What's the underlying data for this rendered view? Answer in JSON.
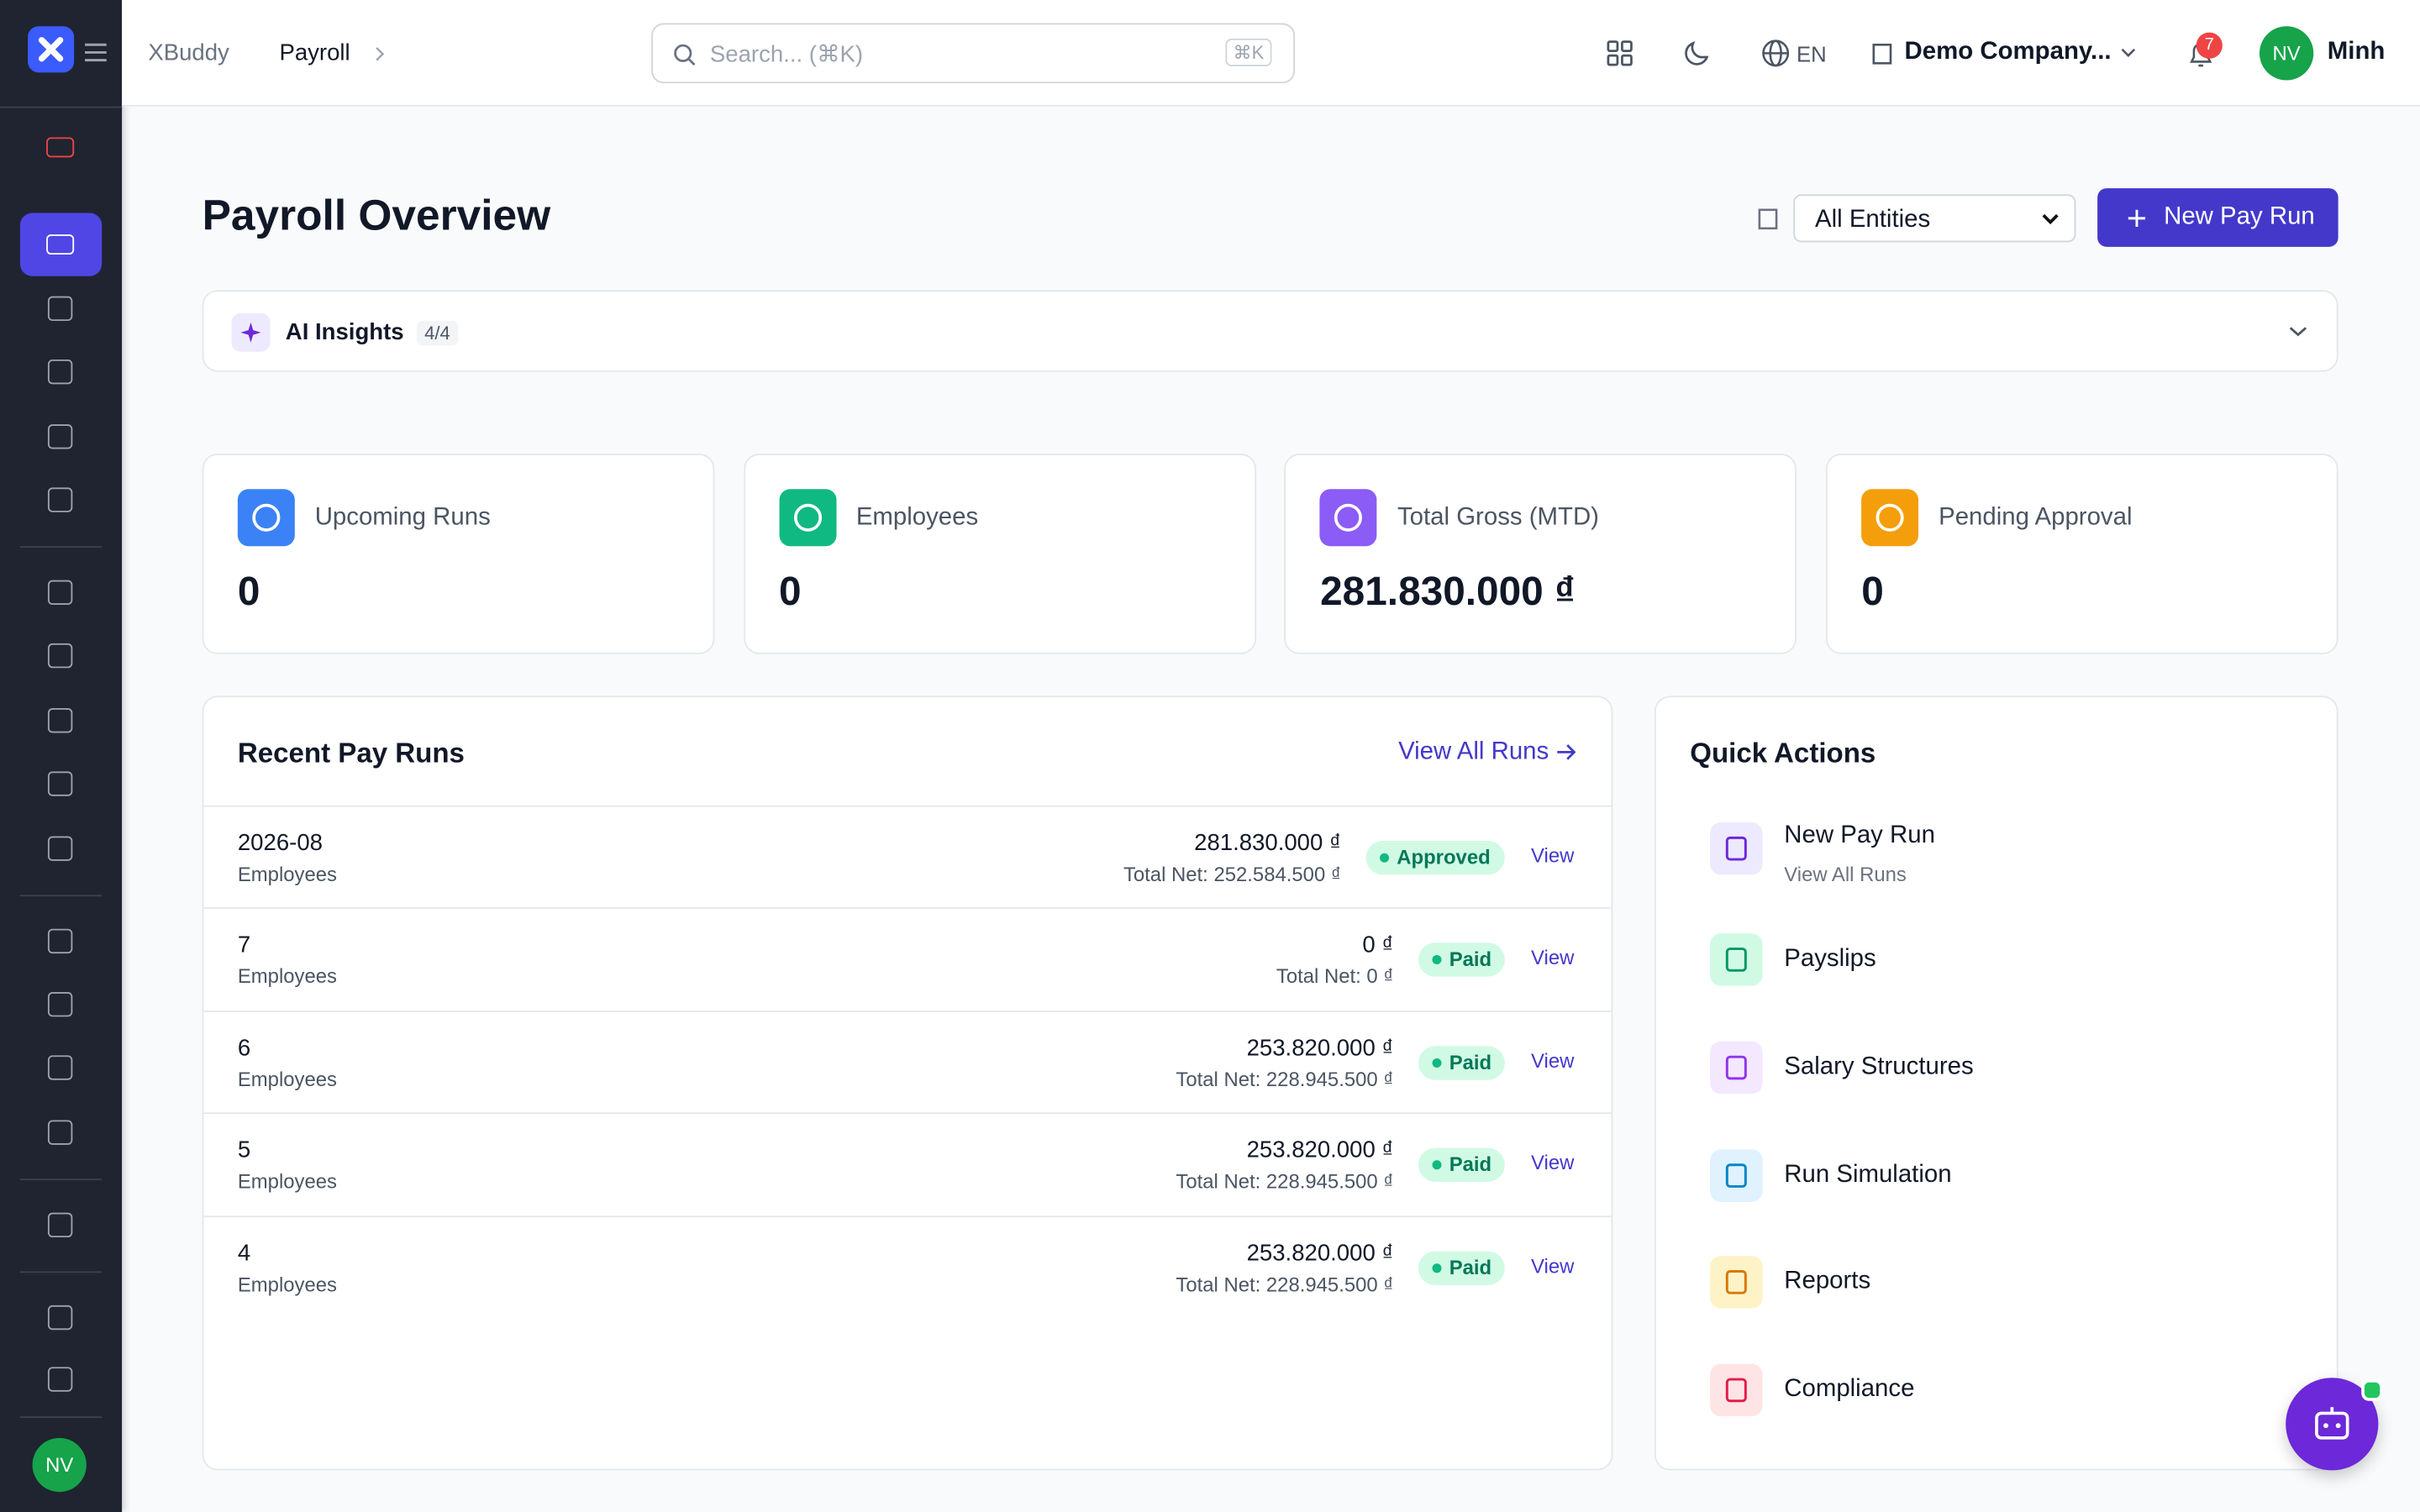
{
  "header": {
    "brand": "XBuddy",
    "breadcrumb_current": "Payroll",
    "search_placeholder": "Search... (⌘K)",
    "search_shortcut": "⌘K",
    "language": "EN",
    "company": "Demo Company...",
    "notifications": "7",
    "user_initials": "NV",
    "user_name": "Minh"
  },
  "page": {
    "title": "Payroll Overview",
    "entity_select": "All Entities",
    "new_pay_run": "New Pay Run"
  },
  "ai_insights": {
    "label": "AI Insights",
    "count": "4/4"
  },
  "stats": [
    {
      "label": "Upcoming Runs",
      "value": "0"
    },
    {
      "label": "Employees",
      "value": "0"
    },
    {
      "label": "Total Gross (MTD)",
      "value": "281.830.000 ₫"
    },
    {
      "label": "Pending Approval",
      "value": "0"
    }
  ],
  "recent_pay_runs": {
    "title": "Recent Pay Runs",
    "view_all": "View All Runs",
    "rows": [
      {
        "name": "2026-08",
        "sub": "Employees",
        "amount": "281.830.000 ₫",
        "net": "Total Net: 252.584.500 ₫",
        "status": "Approved",
        "action": "View"
      },
      {
        "name": "7",
        "sub": "Employees",
        "amount": "0 ₫",
        "net": "Total Net: 0 ₫",
        "status": "Paid",
        "action": "View"
      },
      {
        "name": "6",
        "sub": "Employees",
        "amount": "253.820.000 ₫",
        "net": "Total Net: 228.945.500 ₫",
        "status": "Paid",
        "action": "View"
      },
      {
        "name": "5",
        "sub": "Employees",
        "amount": "253.820.000 ₫",
        "net": "Total Net: 228.945.500 ₫",
        "status": "Paid",
        "action": "View"
      },
      {
        "name": "4",
        "sub": "Employees",
        "amount": "253.820.000 ₫",
        "net": "Total Net: 228.945.500 ₫",
        "status": "Paid",
        "action": "View"
      }
    ]
  },
  "quick_actions": {
    "title": "Quick Actions",
    "items": [
      {
        "label": "New Pay Run",
        "sub": "View All Runs"
      },
      {
        "label": "Payslips"
      },
      {
        "label": "Salary Structures"
      },
      {
        "label": "Run Simulation"
      },
      {
        "label": "Reports"
      },
      {
        "label": "Compliance"
      }
    ]
  },
  "sidebar": {
    "user_initials": "NV"
  }
}
